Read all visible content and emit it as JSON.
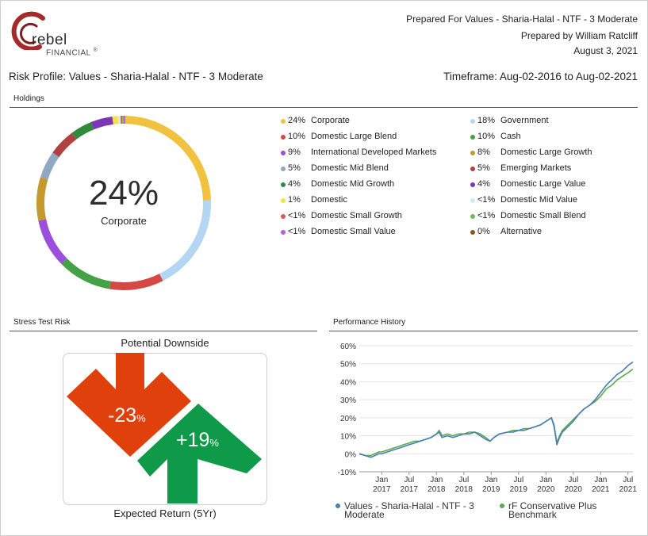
{
  "header": {
    "logo_text": "rebel",
    "logo_sub": "FINANCIAL",
    "logo_mark": "®",
    "prepared_for": "Prepared For Values - Sharia-Halal - NTF - 3 Moderate",
    "prepared_by": "Prepared by William Ratcliff",
    "date": "August 3, 2021",
    "risk_profile": "Risk Profile: Values - Sharia-Halal - NTF - 3 Moderate",
    "timeframe": "Timeframe: Aug-02-2016 to Aug-02-2021"
  },
  "holdings": {
    "section_title": "Holdings",
    "center_pct": "24%",
    "center_label": "Corporate",
    "items": [
      {
        "pct": "24%",
        "name": "Corporate",
        "color": "#f0c23f"
      },
      {
        "pct": "18%",
        "name": "Government",
        "color": "#b3d6f3"
      },
      {
        "pct": "10%",
        "name": "Domestic Large Blend",
        "color": "#d64845"
      },
      {
        "pct": "10%",
        "name": "Cash",
        "color": "#45a047"
      },
      {
        "pct": "9%",
        "name": "International Developed Markets",
        "color": "#9c4fdc"
      },
      {
        "pct": "8%",
        "name": "Domestic Large Growth",
        "color": "#c49a30"
      },
      {
        "pct": "5%",
        "name": "Domestic Mid Blend",
        "color": "#8fa9c3"
      },
      {
        "pct": "5%",
        "name": "Emerging Markets",
        "color": "#b04141"
      },
      {
        "pct": "4%",
        "name": "Domestic Mid Growth",
        "color": "#2f8a3c"
      },
      {
        "pct": "4%",
        "name": "Domestic Large Value",
        "color": "#7a35b8"
      },
      {
        "pct": "1%",
        "name": "Domestic",
        "color": "#f5e04a"
      },
      {
        "pct": "<1%",
        "name": "Domestic Mid Value",
        "color": "#cdeaf8"
      },
      {
        "pct": "<1%",
        "name": "Domestic Small Growth",
        "color": "#e05a55"
      },
      {
        "pct": "<1%",
        "name": "Domestic Small Blend",
        "color": "#6cc04f"
      },
      {
        "pct": "<1%",
        "name": "Domestic Small Value",
        "color": "#b15de6"
      },
      {
        "pct": "0%",
        "name": "Alternative",
        "color": "#8a5a1c"
      }
    ]
  },
  "chart_data": [
    {
      "type": "pie",
      "title": "Holdings",
      "labels": [
        "Corporate",
        "Government",
        "Domestic Large Blend",
        "Cash",
        "International Developed Markets",
        "Domestic Large Growth",
        "Domestic Mid Blend",
        "Emerging Markets",
        "Domestic Mid Growth",
        "Domestic Large Value",
        "Domestic",
        "Domestic Mid Value",
        "Domestic Small Growth",
        "Domestic Small Blend",
        "Domestic Small Value",
        "Alternative"
      ],
      "values": [
        24,
        18,
        10,
        10,
        9,
        8,
        5,
        5,
        4,
        4,
        1,
        0.5,
        0.3,
        0.3,
        0.3,
        0
      ],
      "colors": [
        "#f0c23f",
        "#b3d6f3",
        "#d64845",
        "#45a047",
        "#9c4fdc",
        "#c49a30",
        "#8fa9c3",
        "#b04141",
        "#2f8a3c",
        "#7a35b8",
        "#f5e04a",
        "#cdeaf8",
        "#e05a55",
        "#6cc04f",
        "#b15de6",
        "#8a5a1c"
      ]
    },
    {
      "type": "line",
      "title": "Performance History",
      "ylim": [
        -10,
        60
      ],
      "yticks": [
        -10,
        0,
        10,
        20,
        30,
        40,
        50,
        60
      ],
      "ytick_labels": [
        "-10%",
        "0%",
        "10%",
        "20%",
        "30%",
        "40%",
        "50%",
        "60%"
      ],
      "xticks": [
        {
          "t": 2017.0,
          "top": "Jan",
          "bottom": "2017"
        },
        {
          "t": 2017.5,
          "top": "Jul",
          "bottom": "2017"
        },
        {
          "t": 2018.0,
          "top": "Jan",
          "bottom": "2018"
        },
        {
          "t": 2018.5,
          "top": "Jul",
          "bottom": "2018"
        },
        {
          "t": 2019.0,
          "top": "Jan",
          "bottom": "2019"
        },
        {
          "t": 2019.5,
          "top": "Jul",
          "bottom": "2019"
        },
        {
          "t": 2020.0,
          "top": "Jan",
          "bottom": "2020"
        },
        {
          "t": 2020.5,
          "top": "Jul",
          "bottom": "2020"
        },
        {
          "t": 2021.0,
          "top": "Jan",
          "bottom": "2021"
        },
        {
          "t": 2021.5,
          "top": "Jul",
          "bottom": "2021"
        }
      ],
      "x": [
        2016.59,
        2016.7,
        2016.8,
        2016.87,
        2016.95,
        2017.0,
        2017.1,
        2017.2,
        2017.3,
        2017.4,
        2017.5,
        2017.6,
        2017.7,
        2017.8,
        2017.9,
        2018.0,
        2018.05,
        2018.1,
        2018.2,
        2018.3,
        2018.4,
        2018.5,
        2018.6,
        2018.7,
        2018.8,
        2018.9,
        2018.98,
        2019.05,
        2019.15,
        2019.3,
        2019.4,
        2019.5,
        2019.6,
        2019.7,
        2019.8,
        2019.9,
        2020.0,
        2020.1,
        2020.15,
        2020.2,
        2020.25,
        2020.3,
        2020.4,
        2020.5,
        2020.6,
        2020.7,
        2020.8,
        2020.9,
        2021.0,
        2021.1,
        2021.2,
        2021.3,
        2021.4,
        2021.5,
        2021.59
      ],
      "series": [
        {
          "name": "Values - Sharia-Halal - NTF - 3 Moderate",
          "color": "#4a7fb5",
          "values": [
            0,
            -1,
            -2,
            -1,
            0,
            0,
            1,
            2,
            3,
            4,
            5,
            6,
            7,
            8,
            9,
            11,
            12,
            9,
            10,
            9,
            10,
            11,
            11,
            12,
            10,
            8,
            7,
            9,
            11,
            12,
            12,
            13,
            13,
            14,
            15,
            16,
            18,
            20,
            15,
            5,
            9,
            12,
            15,
            18,
            22,
            25,
            27,
            30,
            34,
            38,
            41,
            44,
            46,
            49,
            51
          ]
        },
        {
          "name": "rF Conservative Plus Benchmark",
          "color": "#5aab4a",
          "values": [
            0,
            -1,
            -1,
            0,
            1,
            1,
            2,
            3,
            4,
            5,
            6,
            7,
            7,
            8,
            9,
            11,
            13,
            10,
            11,
            10,
            11,
            11,
            12,
            12,
            11,
            9,
            7,
            9,
            11,
            12,
            13,
            13,
            14,
            14,
            15,
            16,
            18,
            20,
            16,
            6,
            10,
            13,
            16,
            19,
            22,
            25,
            27,
            29,
            32,
            36,
            38,
            41,
            43,
            45,
            47
          ]
        }
      ]
    }
  ],
  "stress": {
    "section_title": "Stress Test Risk",
    "title": "Potential Downside",
    "downside": "-23",
    "downside_unit": "%",
    "upside": "+19",
    "upside_unit": "%",
    "footer": "Expected Return (5Yr)",
    "down_color": "#e0410c",
    "up_color": "#0e9a48"
  },
  "performance": {
    "section_title": "Performance History",
    "legend": [
      {
        "name_line1": "Values - Sharia-Halal - NTF - 3",
        "name_line2": "Moderate",
        "color": "#4a7fb5"
      },
      {
        "name_line1": "rF Conservative Plus",
        "name_line2": "Benchmark",
        "color": "#5aab4a"
      }
    ]
  }
}
